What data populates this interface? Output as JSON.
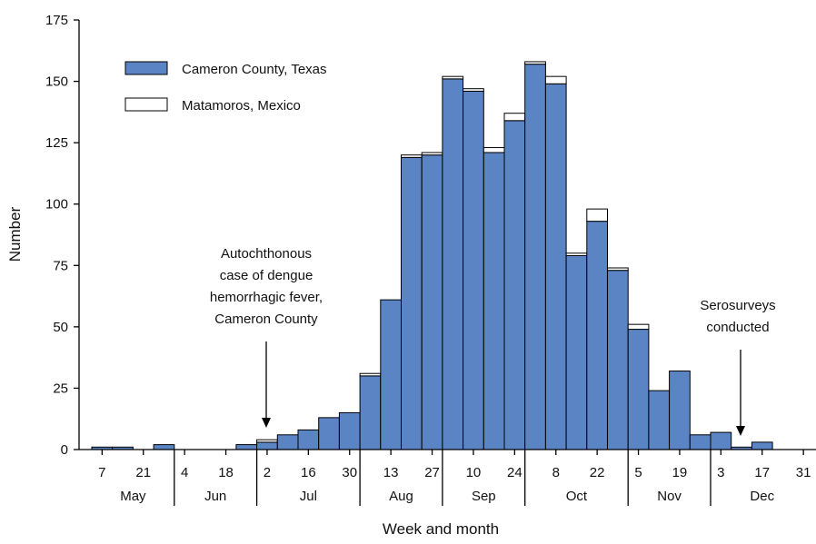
{
  "chart_data": {
    "type": "bar",
    "stacked": true,
    "ylabel": "Number",
    "xlabel": "Week and month",
    "ylim": [
      0,
      175
    ],
    "yticks": [
      0,
      25,
      50,
      75,
      100,
      125,
      150,
      175
    ],
    "colors": {
      "cameron": "#5b84c4",
      "matamoros": "#ffffff",
      "stroke": "#000000"
    },
    "legend": {
      "position": "top-left",
      "items": [
        {
          "label": "Cameron County, Texas",
          "color": "#5b84c4"
        },
        {
          "label": "Matamoros, Mexico",
          "color": "#ffffff"
        }
      ]
    },
    "weeks": [
      {
        "date": "May 7",
        "label": "7",
        "cameron": 1,
        "matamoros": 0
      },
      {
        "date": "May 14",
        "label": "",
        "cameron": 1,
        "matamoros": 0
      },
      {
        "date": "May 21",
        "label": "21",
        "cameron": 0,
        "matamoros": 0
      },
      {
        "date": "May 28",
        "label": "",
        "cameron": 2,
        "matamoros": 0
      },
      {
        "date": "Jun 4",
        "label": "4",
        "cameron": 0,
        "matamoros": 0
      },
      {
        "date": "Jun 11",
        "label": "",
        "cameron": 0,
        "matamoros": 0
      },
      {
        "date": "Jun 18",
        "label": "18",
        "cameron": 0,
        "matamoros": 0
      },
      {
        "date": "Jun 25",
        "label": "",
        "cameron": 2,
        "matamoros": 0
      },
      {
        "date": "Jul 2",
        "label": "2",
        "cameron": 3,
        "matamoros": 1
      },
      {
        "date": "Jul 9",
        "label": "",
        "cameron": 6,
        "matamoros": 0
      },
      {
        "date": "Jul 16",
        "label": "16",
        "cameron": 8,
        "matamoros": 0
      },
      {
        "date": "Jul 23",
        "label": "",
        "cameron": 13,
        "matamoros": 0
      },
      {
        "date": "Jul 30",
        "label": "30",
        "cameron": 15,
        "matamoros": 0
      },
      {
        "date": "Aug 6",
        "label": "",
        "cameron": 30,
        "matamoros": 1
      },
      {
        "date": "Aug 13",
        "label": "13",
        "cameron": 61,
        "matamoros": 0
      },
      {
        "date": "Aug 20",
        "label": "",
        "cameron": 119,
        "matamoros": 1
      },
      {
        "date": "Aug 27",
        "label": "27",
        "cameron": 120,
        "matamoros": 1
      },
      {
        "date": "Sep 3",
        "label": "",
        "cameron": 151,
        "matamoros": 1
      },
      {
        "date": "Sep 10",
        "label": "10",
        "cameron": 146,
        "matamoros": 1
      },
      {
        "date": "Sep 17",
        "label": "",
        "cameron": 121,
        "matamoros": 2
      },
      {
        "date": "Sep 24",
        "label": "24",
        "cameron": 134,
        "matamoros": 3
      },
      {
        "date": "Oct 1",
        "label": "",
        "cameron": 157,
        "matamoros": 1
      },
      {
        "date": "Oct 8",
        "label": "8",
        "cameron": 149,
        "matamoros": 3
      },
      {
        "date": "Oct 15",
        "label": "",
        "cameron": 79,
        "matamoros": 1
      },
      {
        "date": "Oct 22",
        "label": "22",
        "cameron": 93,
        "matamoros": 5
      },
      {
        "date": "Oct 29",
        "label": "",
        "cameron": 73,
        "matamoros": 1
      },
      {
        "date": "Nov 5",
        "label": "5",
        "cameron": 49,
        "matamoros": 2
      },
      {
        "date": "Nov 12",
        "label": "",
        "cameron": 24,
        "matamoros": 0
      },
      {
        "date": "Nov 19",
        "label": "19",
        "cameron": 32,
        "matamoros": 0
      },
      {
        "date": "Nov 26",
        "label": "",
        "cameron": 6,
        "matamoros": 0
      },
      {
        "date": "Dec 3",
        "label": "3",
        "cameron": 7,
        "matamoros": 0
      },
      {
        "date": "Dec 10",
        "label": "",
        "cameron": 1,
        "matamoros": 0
      },
      {
        "date": "Dec 17",
        "label": "17",
        "cameron": 3,
        "matamoros": 0
      },
      {
        "date": "Dec 24",
        "label": "",
        "cameron": 0,
        "matamoros": 0
      },
      {
        "date": "Dec 31",
        "label": "31",
        "cameron": 0,
        "matamoros": 0
      }
    ],
    "months": [
      {
        "label": "May",
        "start": 0,
        "count": 4
      },
      {
        "label": "Jun",
        "start": 4,
        "count": 4
      },
      {
        "label": "Jul",
        "start": 8,
        "count": 5
      },
      {
        "label": "Aug",
        "start": 13,
        "count": 4
      },
      {
        "label": "Sep",
        "start": 17,
        "count": 4
      },
      {
        "label": "Oct",
        "start": 21,
        "count": 5
      },
      {
        "label": "Nov",
        "start": 26,
        "count": 4
      },
      {
        "label": "Dec",
        "start": 30,
        "count": 5
      }
    ],
    "annotations": [
      {
        "lines": [
          "Autochthonous",
          "case of dengue",
          "hemorrhagic fever,",
          "Cameron County"
        ],
        "week_index": 8
      },
      {
        "lines": [
          "Serosurveys",
          "conducted"
        ],
        "week_index": 31
      }
    ]
  }
}
